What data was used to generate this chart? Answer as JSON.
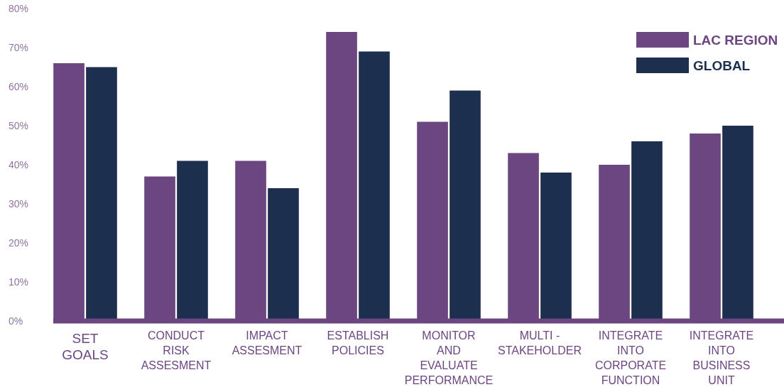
{
  "chart_data": {
    "type": "bar",
    "categories": [
      "SET\nGOALS",
      "CONDUCT\nRISK\nASSESMENT",
      "IMPACT\nASSESMENT",
      "ESTABLISH\nPOLICIES",
      "MONITOR\nAND\nEVALUATE\nPERFORMANCE",
      "MULTI -\nSTAKEHOLDER",
      "INTEGRATE\nINTO\nCORPORATE\nFUNCTION",
      "INTEGRATE\nINTO\nBUSINESS\nUNIT"
    ],
    "series": [
      {
        "name": "LAC REGION",
        "color": "#6c4680",
        "values": [
          66,
          37,
          41,
          74,
          51,
          43,
          40,
          48
        ]
      },
      {
        "name": "GLOBAL",
        "color": "#1c2f4e",
        "values": [
          65,
          41,
          34,
          69,
          59,
          38,
          46,
          50
        ]
      }
    ],
    "ylim": [
      0,
      80
    ],
    "yticks": [
      {
        "value": 0,
        "label": "0%"
      },
      {
        "value": 10,
        "label": "10%"
      },
      {
        "value": 20,
        "label": "20%"
      },
      {
        "value": 30,
        "label": "30%"
      },
      {
        "value": 40,
        "label": "40%"
      },
      {
        "value": 50,
        "label": "50%"
      },
      {
        "value": 60,
        "label": "60%"
      },
      {
        "value": 70,
        "label": "70%"
      },
      {
        "value": 80,
        "label": "80%"
      }
    ],
    "grid": false,
    "legend": "top right"
  }
}
